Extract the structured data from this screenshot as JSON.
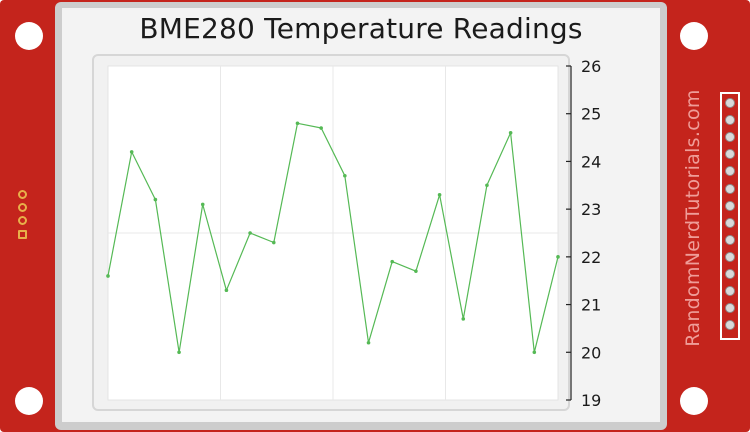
{
  "title": "BME280 Temperature Readings",
  "brand": "RandomNerdTutorials.com",
  "colors": {
    "board": "#c4241c",
    "line": "#55b955",
    "pad": "#e8b04a"
  },
  "chart_data": {
    "type": "line",
    "title": "BME280 Temperature Readings",
    "xlabel": "",
    "ylabel": "",
    "ylim": [
      19,
      26
    ],
    "yticks": [
      "19",
      "20",
      "21",
      "22",
      "23",
      "24",
      "25",
      "26"
    ],
    "grid": true,
    "series": [
      {
        "values": [
          21.6,
          24.2,
          23.2,
          20.0,
          23.1,
          21.3,
          22.5,
          22.3,
          24.8,
          24.7,
          23.7,
          20.2,
          21.9,
          21.7,
          23.3,
          20.7,
          23.5,
          24.6,
          20.0,
          22.0
        ]
      }
    ]
  }
}
